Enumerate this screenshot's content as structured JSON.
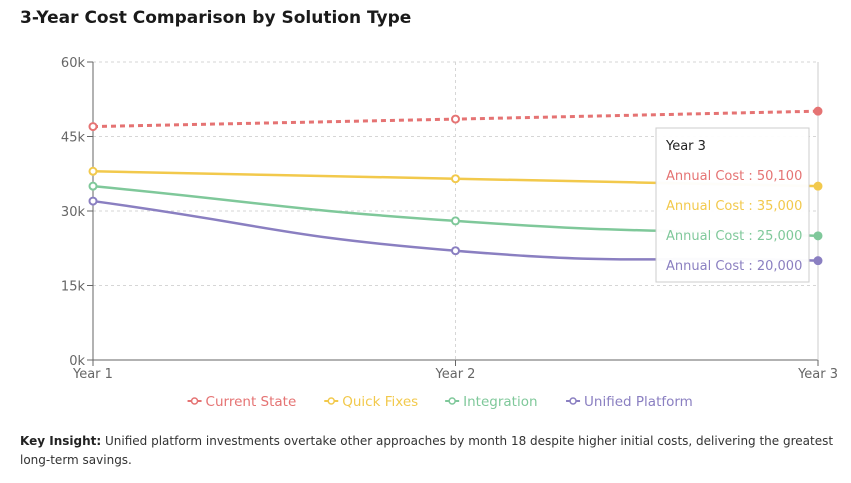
{
  "title": "3-Year Cost Comparison by Solution Type",
  "insight": {
    "label": "Key Insight:",
    "text": "Unified platform investments overtake other approaches by month 18 despite higher initial costs, delivering the greatest long-term savings."
  },
  "tooltip": {
    "title": "Year 3",
    "label": "Annual Cost"
  },
  "chart_data": {
    "type": "line",
    "categories": [
      "Year 1",
      "Year 2",
      "Year 3"
    ],
    "y_ticks": [
      0,
      15000,
      30000,
      45000,
      60000
    ],
    "y_tick_labels": [
      "0k",
      "15k",
      "30k",
      "45k",
      "60k"
    ],
    "ylim": [
      0,
      60000
    ],
    "grid": true,
    "legend_position": "bottom",
    "series": [
      {
        "name": "Current State",
        "values": [
          47000,
          48500,
          50100
        ],
        "color": "#e57373",
        "dashed": true,
        "value_label": "50,100"
      },
      {
        "name": "Quick Fixes",
        "values": [
          38000,
          36500,
          35000
        ],
        "color": "#f2c94c",
        "dashed": false,
        "value_label": "35,000"
      },
      {
        "name": "Integration",
        "values": [
          35000,
          28000,
          25000
        ],
        "color": "#7fc89a",
        "dashed": false,
        "value_label": "25,000"
      },
      {
        "name": "Unified Platform",
        "values": [
          32000,
          22000,
          20000
        ],
        "color": "#8a7fc1",
        "dashed": false,
        "value_label": "20,000"
      }
    ]
  }
}
